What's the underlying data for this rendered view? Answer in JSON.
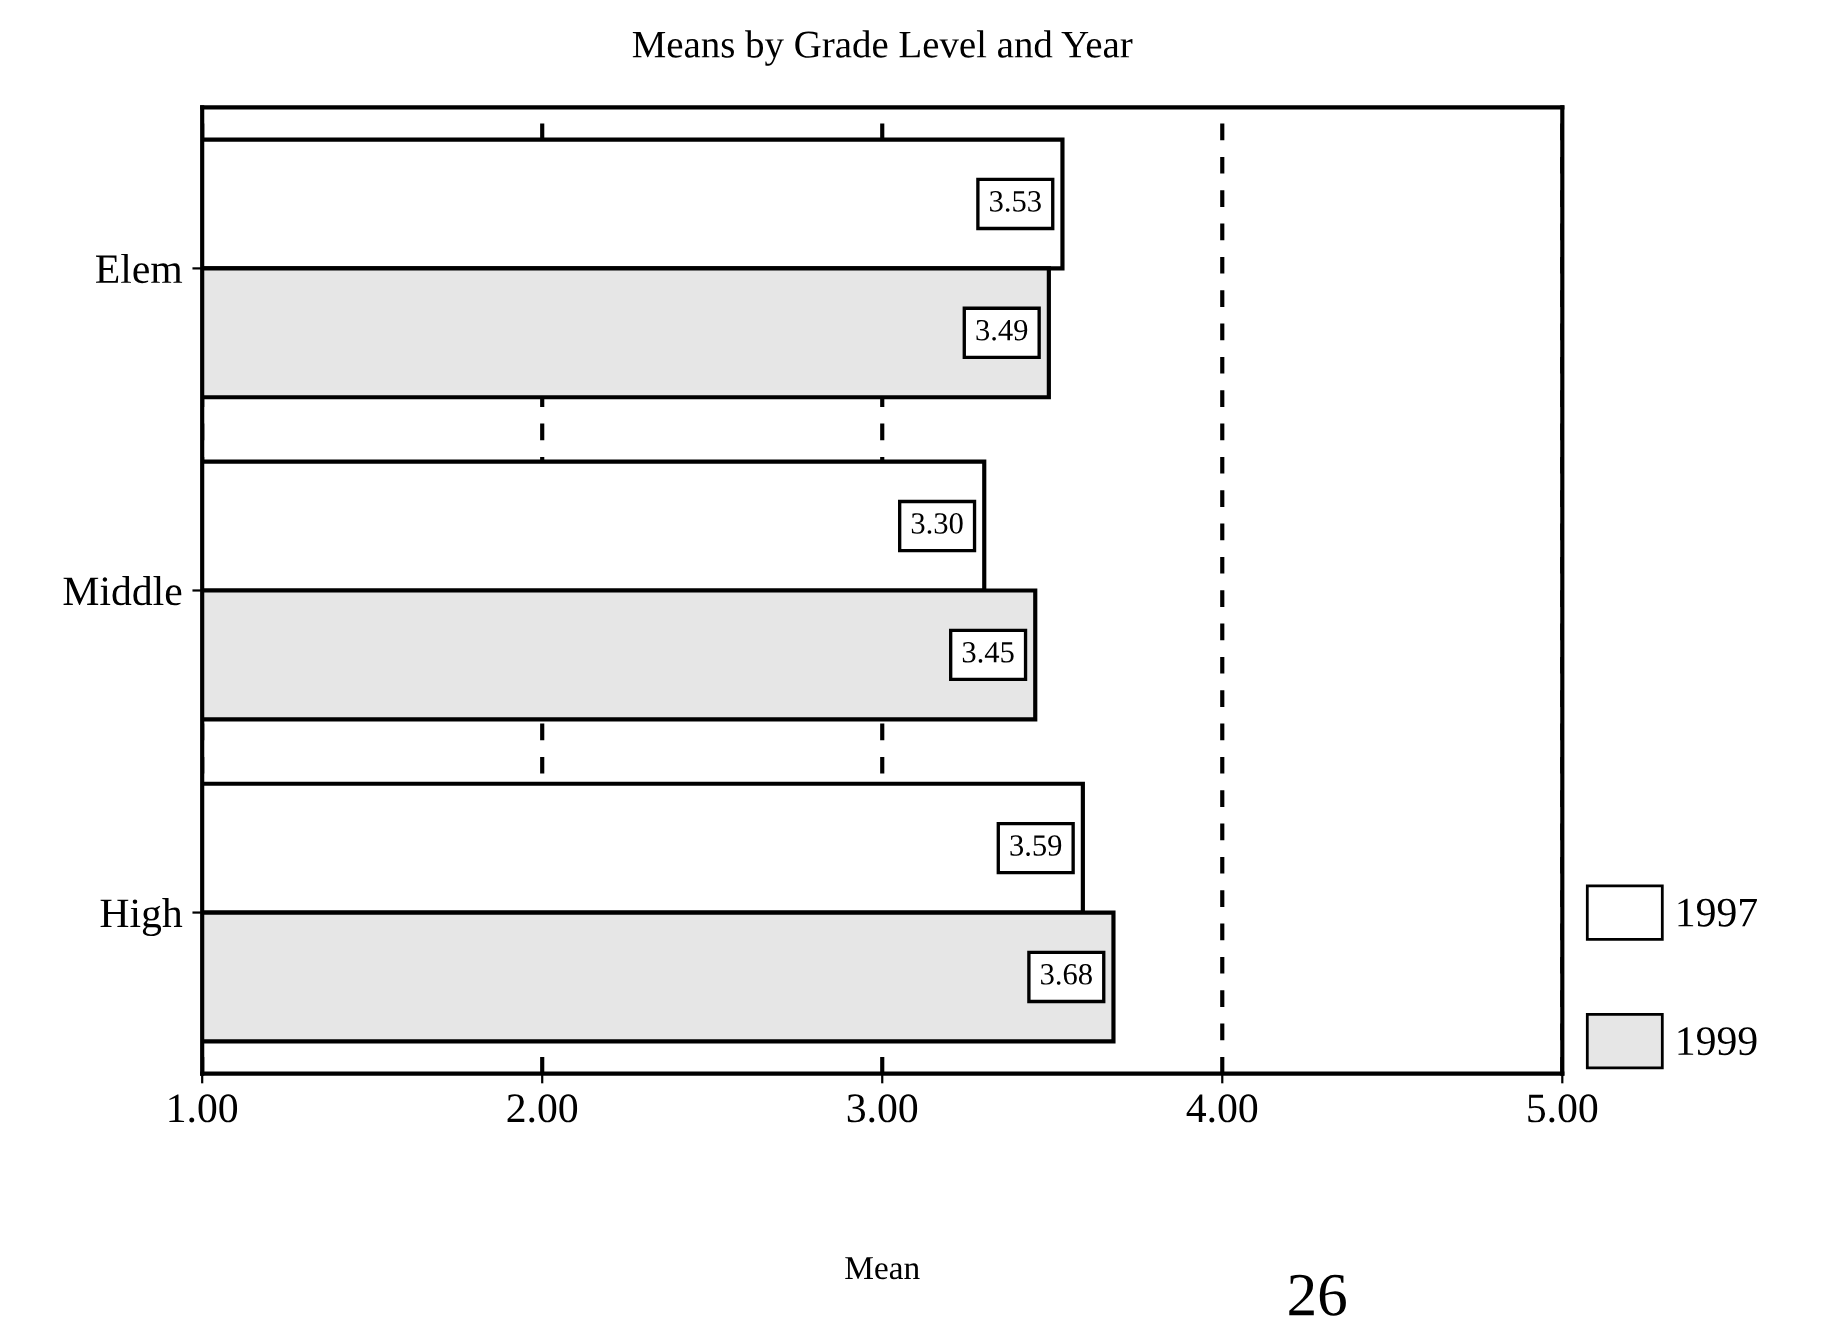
{
  "chart_data": {
    "type": "bar",
    "orientation": "horizontal",
    "title": "Means by Grade Level and Year",
    "xlabel": "Mean",
    "categories": [
      "Elem",
      "Middle",
      "High"
    ],
    "series": [
      {
        "name": "1997",
        "color": "#ffffff",
        "values": [
          3.53,
          3.3,
          3.59
        ],
        "value_labels": [
          "3.53",
          "3.30",
          "3.59"
        ]
      },
      {
        "name": "1999",
        "color": "#e6e6e6",
        "values": [
          3.49,
          3.45,
          3.68
        ],
        "value_labels": [
          "3.49",
          "3.45",
          "3.68"
        ]
      }
    ],
    "xlim": [
      1,
      5
    ],
    "xticks": [
      {
        "value": 1,
        "label": "1.00"
      },
      {
        "value": 2,
        "label": "2.00"
      },
      {
        "value": 3,
        "label": "3.00"
      },
      {
        "value": 4,
        "label": "4.00"
      },
      {
        "value": 5,
        "label": "5.00"
      }
    ],
    "grid": "x",
    "legend": "bottom right",
    "annotations": [
      "26"
    ]
  }
}
